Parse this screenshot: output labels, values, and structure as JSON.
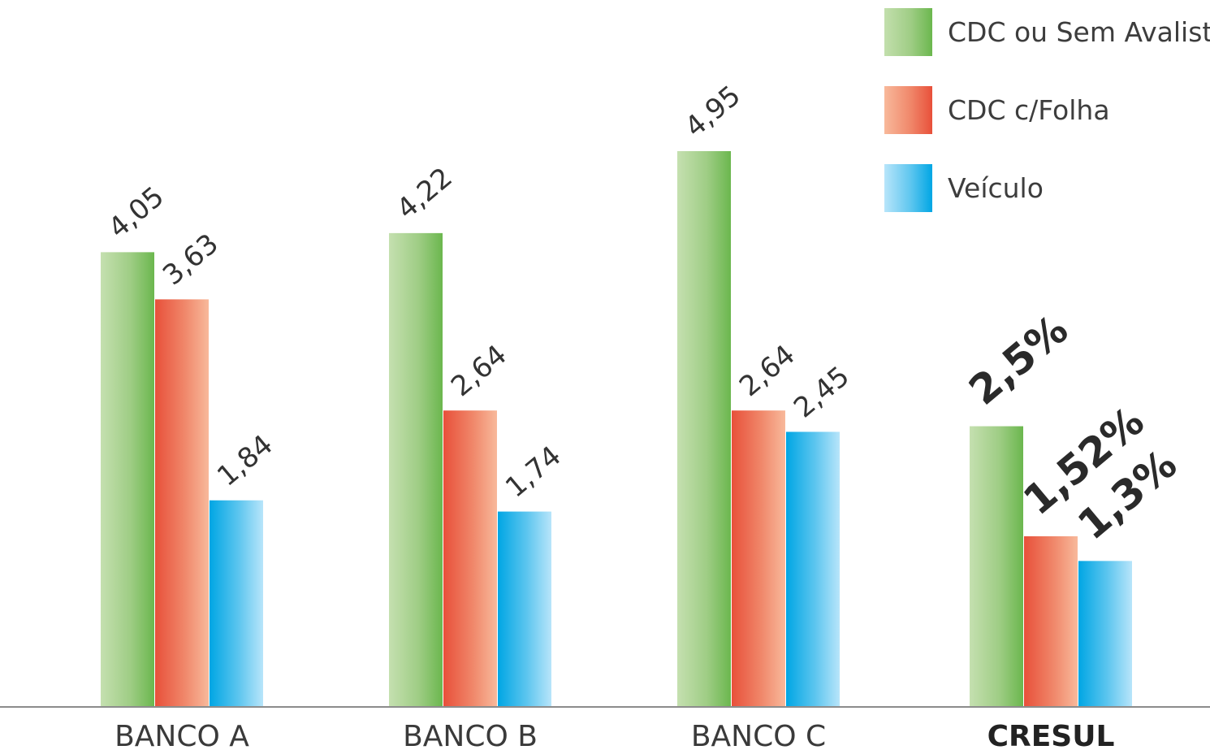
{
  "chart_data": {
    "type": "bar",
    "categories": [
      "BANCO A",
      "BANCO B",
      "BANCO C",
      "CRESUL"
    ],
    "series": [
      {
        "name": "CDC ou Sem Avalista",
        "values": [
          4.05,
          4.22,
          4.95,
          2.5
        ],
        "labels": [
          "4,05",
          "4,22",
          "4,95",
          "2,5%"
        ],
        "color": "#6bb74e"
      },
      {
        "name": "CDC c/Folha",
        "values": [
          3.63,
          2.64,
          2.64,
          1.52
        ],
        "labels": [
          "3,63",
          "2,64",
          "2,64",
          "1,52%"
        ],
        "color": "#e8503a"
      },
      {
        "name": "Veículo",
        "values": [
          1.84,
          1.74,
          2.45,
          1.3
        ],
        "labels": [
          "1,84",
          "1,74",
          "2,45",
          "1,3%"
        ],
        "color": "#00a6e4"
      }
    ],
    "highlight_category": "CRESUL",
    "legend_position": "top-right",
    "grid": false,
    "ylim": [
      0,
      5.9
    ]
  },
  "legend": {
    "items": [
      {
        "label": "CDC ou Sem Avalista",
        "swatch": "green"
      },
      {
        "label": "CDC c/Folha",
        "swatch": "red"
      },
      {
        "label": "Veículo",
        "swatch": "blue"
      }
    ]
  }
}
